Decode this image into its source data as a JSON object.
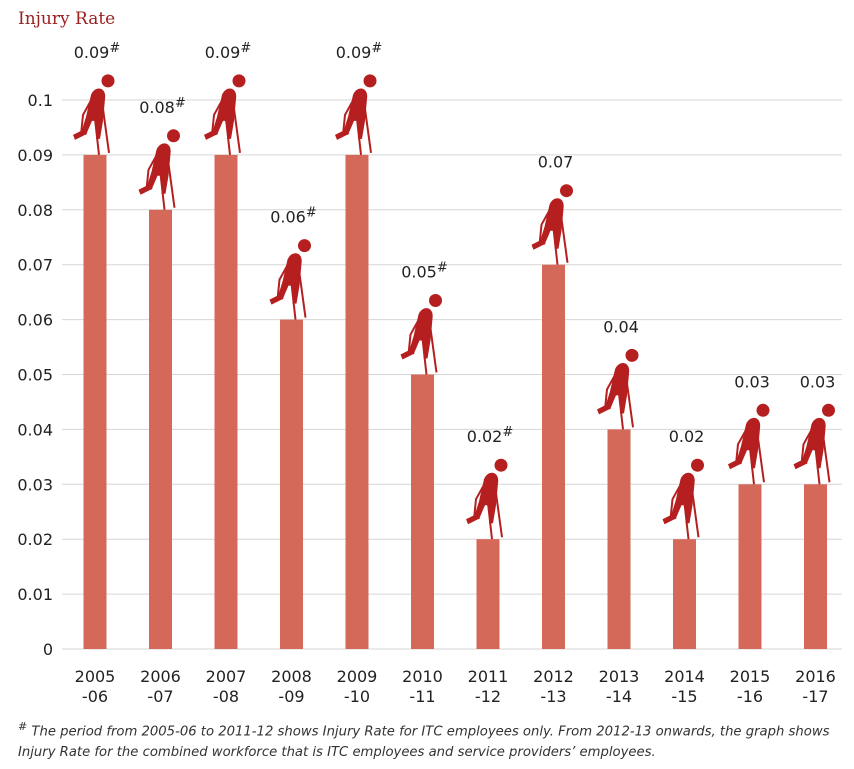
{
  "chart_data": {
    "type": "bar",
    "title": "Injury Rate",
    "categories": [
      [
        "2005",
        "-06"
      ],
      [
        "2006",
        "-07"
      ],
      [
        "2007",
        "-08"
      ],
      [
        "2008",
        "-09"
      ],
      [
        "2009",
        "-10"
      ],
      [
        "2010",
        "-11"
      ],
      [
        "2011",
        "-12"
      ],
      [
        "2012",
        "-13"
      ],
      [
        "2013",
        "-14"
      ],
      [
        "2014",
        "-15"
      ],
      [
        "2015",
        "-16"
      ],
      [
        "2016",
        "-17"
      ]
    ],
    "values": [
      0.09,
      0.08,
      0.09,
      0.06,
      0.09,
      0.05,
      0.02,
      0.07,
      0.04,
      0.02,
      0.03,
      0.03
    ],
    "data_labels": [
      "0.09",
      "0.08",
      "0.09",
      "0.06",
      "0.09",
      "0.05",
      "0.02",
      "0.07",
      "0.04",
      "0.02",
      "0.03",
      "0.03"
    ],
    "label_marks": [
      "#",
      "#",
      "#",
      "#",
      "#",
      "#",
      "#",
      "",
      "",
      "",
      "",
      ""
    ],
    "yticks": [
      "0",
      "0.01",
      "0.02",
      "0.03",
      "0.04",
      "0.05",
      "0.06",
      "0.07",
      "0.08",
      "0.09",
      "0.1"
    ],
    "ylim": [
      0,
      0.1
    ],
    "grid": true,
    "colors": {
      "bar": "#d4695a",
      "icon": "#b51f1f",
      "title": "#9b2020"
    }
  },
  "icon_name": "injured-person-icon",
  "footnote": {
    "mark": "#",
    "text": "The period from 2005-06 to 2011-12 shows Injury Rate for ITC employees only. From 2012-13 onwards, the graph shows Injury Rate for the combined workforce that is ITC employees and service providers’ employees."
  }
}
